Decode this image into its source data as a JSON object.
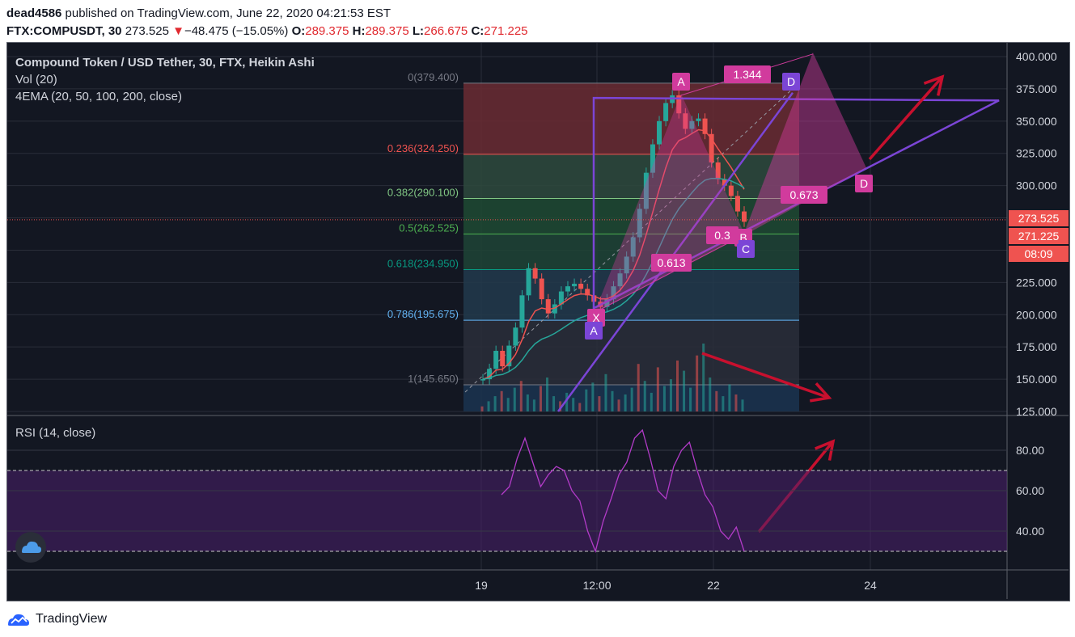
{
  "header": {
    "author": "dead4586",
    "published_text": " published on TradingView.com, June 22, 2020 04:21:53 EST",
    "symbol": "FTX:COMPUSDT, 30",
    "last_price": "273.525",
    "change_arrow": "▼",
    "change": "−48.475 (−15.05%)",
    "o_label": "O:",
    "o_value": "289.375",
    "h_label": "H:",
    "h_value": "289.375",
    "l_label": "L:",
    "l_value": "266.675",
    "c_label": "C:",
    "c_value": "271.225"
  },
  "legend": {
    "title": "Compound Token / USD Tether, 30, FTX, Heikin Ashi",
    "vol": "Vol (20)",
    "ema": "4EMA (20, 50, 100, 200, close)"
  },
  "rsi": {
    "label": "RSI (14, close)"
  },
  "footer": {
    "brand": "TradingView"
  },
  "colors": {
    "background": "#131722",
    "up": "#26a69a",
    "down": "#ef5350",
    "pattern": "#d13b9d",
    "wedge": "#7b45d6",
    "arrow": "#c8102e",
    "rsi_line": "#b23bc8"
  },
  "chart_data": [
    {
      "type": "candlestick",
      "ylim": [
        125,
        410
      ],
      "y_ticks": [
        "400.000",
        "375.000",
        "350.000",
        "325.000",
        "300.000",
        "275.000",
        "250.000",
        "225.000",
        "200.000",
        "175.000",
        "150.000",
        "125.000"
      ],
      "x_ticks": [
        "19",
        "12:00",
        "22",
        "24"
      ],
      "price_labels": [
        "273.525",
        "271.225",
        "08:09"
      ],
      "fib_levels": [
        {
          "label": "0(379.400)",
          "value": 379.4,
          "color": "#787b86",
          "fill": "#6b2c33"
        },
        {
          "label": "0.236(324.250)",
          "value": 324.25,
          "color": "#ef5350",
          "fill": "#2e4a3d"
        },
        {
          "label": "0.382(290.100)",
          "value": 290.1,
          "color": "#81c784",
          "fill": "#1f4a33"
        },
        {
          "label": "0.5(262.525)",
          "value": 262.525,
          "color": "#4caf50",
          "fill": "#1e4436"
        },
        {
          "label": "0.618(234.950)",
          "value": 234.95,
          "color": "#089981",
          "fill": "#22394c"
        },
        {
          "label": "0.786(195.675)",
          "value": 195.675,
          "color": "#64b5f6",
          "fill": "#2a2e39"
        },
        {
          "label": "1(145.650)",
          "value": 145.65,
          "color": "#787b86",
          "fill": "#1b3450"
        }
      ],
      "series": [
        {
          "name": "Heikin Ashi close",
          "values": [
            150,
            158,
            172,
            160,
            176,
            190,
            215,
            236,
            228,
            212,
            201,
            208,
            218,
            222,
            224,
            220,
            215,
            210,
            206,
            212,
            222,
            232,
            245,
            260,
            282,
            310,
            332,
            350,
            364,
            370,
            356,
            344,
            350,
            352,
            340,
            318,
            305,
            300,
            292,
            280,
            272
          ]
        }
      ],
      "pattern_labels": [
        "X",
        "A",
        "B",
        "C",
        "D",
        "A",
        "D",
        "0.613",
        "0.3",
        "1.344",
        "0.673"
      ]
    },
    {
      "type": "line",
      "title": "RSI (14, close)",
      "ylim": [
        20,
        95
      ],
      "y_ticks": [
        "80.00",
        "60.00",
        "40.00"
      ],
      "series": [
        {
          "values": [
            58,
            62,
            76,
            86,
            74,
            62,
            68,
            72,
            70,
            60,
            55,
            40,
            30,
            45,
            56,
            68,
            74,
            86,
            90,
            76,
            60,
            56,
            72,
            80,
            84,
            70,
            58,
            52,
            40,
            36,
            42,
            30
          ]
        }
      ]
    }
  ]
}
